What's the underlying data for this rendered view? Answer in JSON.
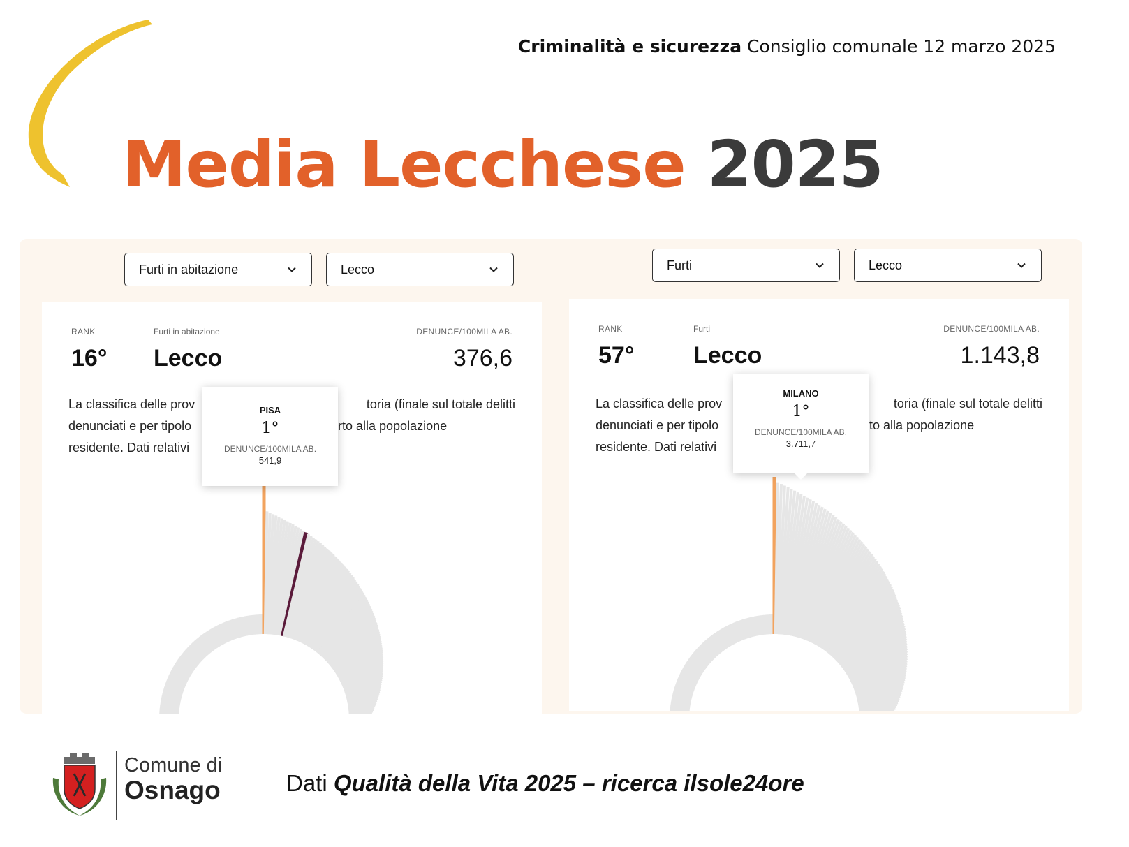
{
  "header": {
    "bold": "Criminalità e sicurezza",
    "rest": "Consiglio comunale 12 marzo 2025"
  },
  "title": {
    "orange": "Media Lecchese",
    "dark": "2025"
  },
  "colors": {
    "orange": "#e2612a",
    "yellow": "#eec22e",
    "highlight_bar": "#f2a35e",
    "lecco_bar": "#5a1a3a",
    "bar_gray": "#e6e6e6"
  },
  "panels": [
    {
      "select_category": "Furti in abitazione",
      "select_city": "Lecco",
      "rank_label": "RANK",
      "category_label": "Furti in abitazione",
      "metric_label": "DENUNCE/100MILA AB.",
      "rank": "16°",
      "city": "Lecco",
      "value": "376,6",
      "desc": [
        "La classifica delle prov",
        "toria (finale sul totale delitti",
        "denunciati e per tipolo",
        "rto alla popolazione",
        "residente. Dati relativi"
      ],
      "tooltip": {
        "city": "PISA",
        "rank": "1°",
        "label": "DENUNCE/100MILA AB.",
        "value": "541,9"
      },
      "chart_data": {
        "type": "radial-bar",
        "total_rank": 107,
        "highlight_rank": 16,
        "top_value": 541.9,
        "highlight_value": 376.6
      }
    },
    {
      "select_category": "Furti",
      "select_city": "Lecco",
      "rank_label": "RANK",
      "category_label": "Furti",
      "metric_label": "DENUNCE/100MILA AB.",
      "rank": "57°",
      "city": "Lecco",
      "value": "1.143,8",
      "desc": [
        "La classifica delle prov",
        "toria (finale sul totale delitti",
        "denunciati e per tipolo",
        "rto alla popolazione",
        "residente. Dati relativi"
      ],
      "tooltip": {
        "city": "MILANO",
        "rank": "1°",
        "label": "DENUNCE/100MILA AB.",
        "value": "3.711,7"
      },
      "chart_data": {
        "type": "radial-bar",
        "total_rank": 107,
        "highlight_rank": 57,
        "top_value": 3711.7,
        "highlight_value": 1143.8
      }
    }
  ],
  "footer": {
    "logo_line1": "Comune di",
    "logo_line2": "Osnago",
    "source_prefix": "Dati",
    "source_italic": "Qualità della Vita 2025 – ricerca ilsole24ore"
  },
  "icons": {
    "dropdown": "chevron-down-icon",
    "emblem": "coat-of-arms-icon"
  }
}
